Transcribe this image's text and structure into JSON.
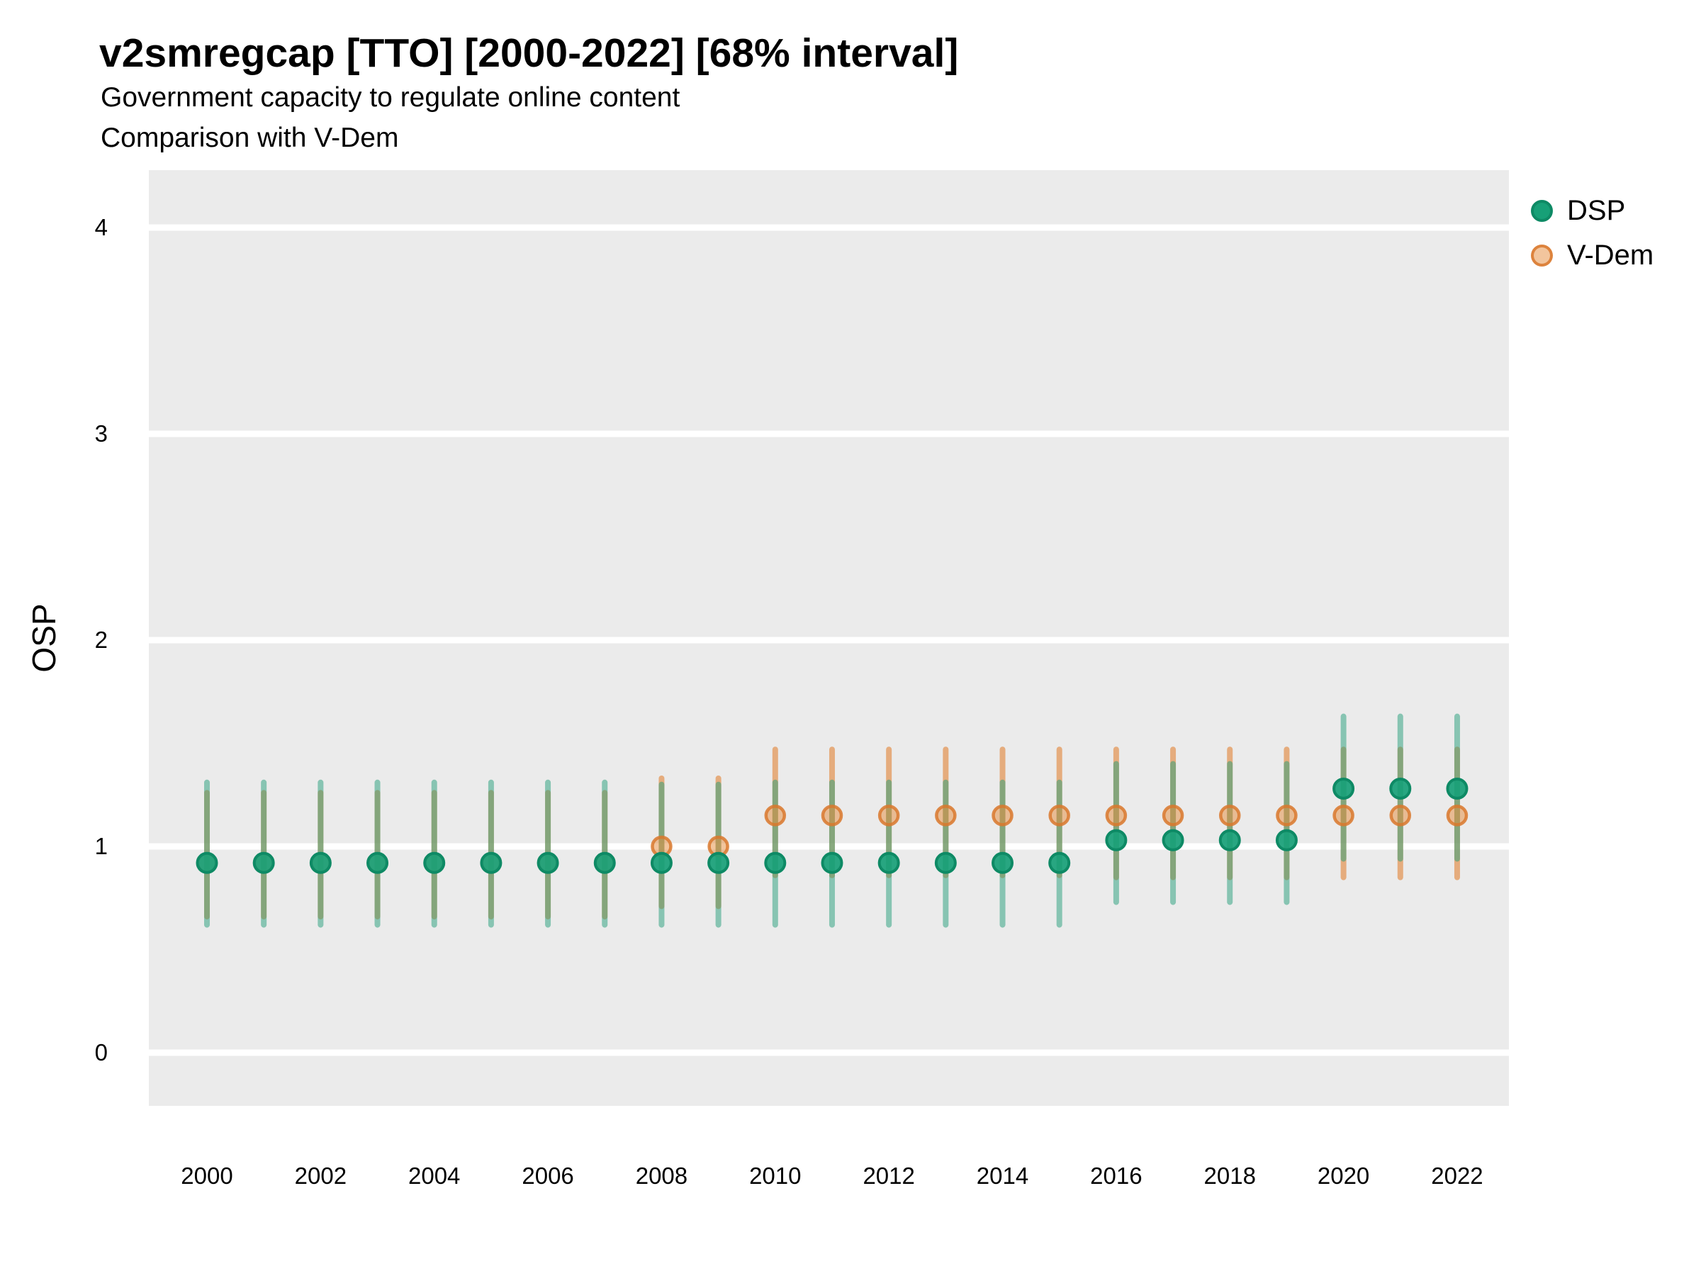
{
  "title": "v2smregcap [TTO] [2000-2022] [68% interval]",
  "subtitle_lines": [
    "Government capacity to regulate online content",
    "Comparison with V-Dem"
  ],
  "y_axis": {
    "label": "OSP",
    "ticks": [
      "0",
      "1",
      "2",
      "3",
      "4"
    ]
  },
  "x_axis": {
    "ticks": [
      "2000",
      "2002",
      "2004",
      "2006",
      "2008",
      "2010",
      "2012",
      "2014",
      "2016",
      "2018",
      "2020",
      "2022"
    ]
  },
  "legend": {
    "items": [
      {
        "label": "DSP"
      },
      {
        "label": "V-Dem"
      }
    ]
  },
  "colors": {
    "panel_bg": "#EBEBEB",
    "grid": "#FFFFFF",
    "dsp_point_fill": "#17A077",
    "dsp_point_stroke": "#0E8A65",
    "dsp_bar": "rgba(35,158,122,0.5)",
    "vdem_point_fill": "rgba(230,140,60,0.5)",
    "vdem_point_stroke": "rgba(217,120,45,0.85)",
    "vdem_bar": "rgba(226,134,58,0.62)"
  },
  "chart_data": {
    "type": "pointrange",
    "title": "v2smregcap [TTO] [2000-2022] [68% interval]",
    "ylabel": "OSP",
    "interval": "68%",
    "ylim": [
      -0.26,
      4.28
    ],
    "yticks": [
      0,
      1,
      2,
      3,
      4
    ],
    "x": [
      2000,
      2001,
      2002,
      2003,
      2004,
      2005,
      2006,
      2007,
      2008,
      2009,
      2010,
      2011,
      2012,
      2013,
      2014,
      2015,
      2016,
      2017,
      2018,
      2019,
      2020,
      2021,
      2022
    ],
    "x_tick_step": 2,
    "legend_position": "right_top",
    "grid": "major_horizontal_only",
    "series": [
      {
        "name": "DSP",
        "values": [
          0.92,
          0.92,
          0.92,
          0.92,
          0.92,
          0.92,
          0.92,
          0.92,
          0.92,
          0.92,
          0.92,
          0.92,
          0.92,
          0.92,
          0.92,
          0.92,
          1.03,
          1.03,
          1.03,
          1.03,
          1.28,
          1.28,
          1.28
        ],
        "lower": [
          0.62,
          0.62,
          0.62,
          0.62,
          0.62,
          0.62,
          0.62,
          0.62,
          0.62,
          0.62,
          0.62,
          0.62,
          0.62,
          0.62,
          0.62,
          0.62,
          0.73,
          0.73,
          0.73,
          0.73,
          0.94,
          0.94,
          0.94
        ],
        "upper": [
          1.31,
          1.31,
          1.31,
          1.31,
          1.31,
          1.31,
          1.31,
          1.31,
          1.3,
          1.3,
          1.31,
          1.31,
          1.31,
          1.31,
          1.31,
          1.31,
          1.4,
          1.4,
          1.4,
          1.4,
          1.63,
          1.63,
          1.63
        ]
      },
      {
        "name": "V-Dem",
        "values": [
          0.92,
          0.92,
          0.92,
          0.92,
          0.92,
          0.92,
          0.92,
          0.92,
          1.0,
          1.0,
          1.15,
          1.15,
          1.15,
          1.15,
          1.15,
          1.15,
          1.15,
          1.15,
          1.15,
          1.15,
          1.15,
          1.15,
          1.15
        ],
        "lower": [
          0.66,
          0.66,
          0.66,
          0.66,
          0.66,
          0.66,
          0.66,
          0.66,
          0.71,
          0.71,
          0.86,
          0.86,
          0.86,
          0.86,
          0.86,
          0.86,
          0.85,
          0.85,
          0.85,
          0.85,
          0.85,
          0.85,
          0.85
        ],
        "upper": [
          1.26,
          1.26,
          1.26,
          1.26,
          1.26,
          1.26,
          1.26,
          1.26,
          1.33,
          1.33,
          1.47,
          1.47,
          1.47,
          1.47,
          1.47,
          1.47,
          1.47,
          1.47,
          1.47,
          1.47,
          1.47,
          1.47,
          1.47
        ]
      }
    ]
  }
}
